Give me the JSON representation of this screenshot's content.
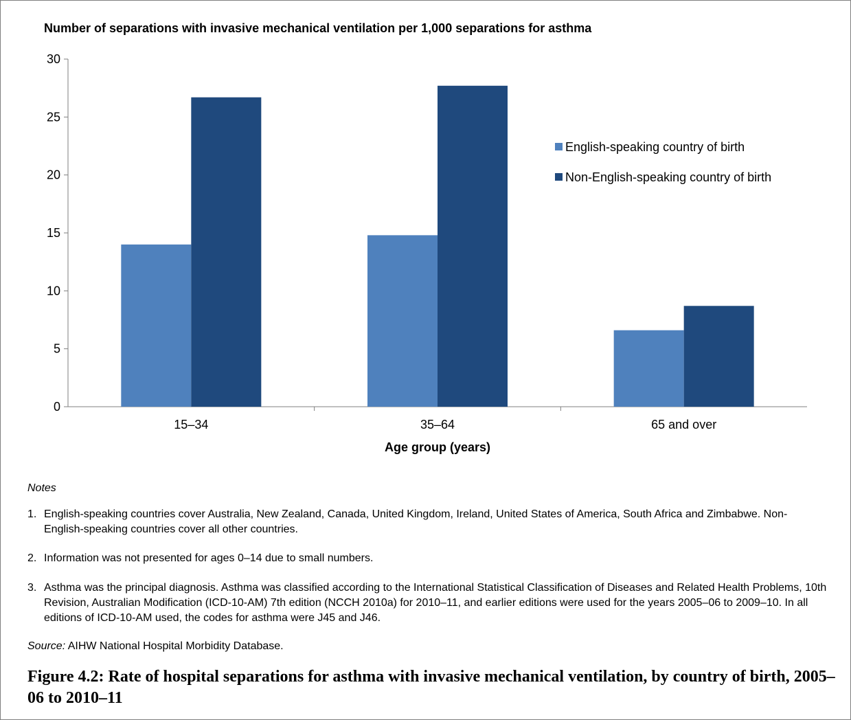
{
  "chart_data": {
    "type": "bar",
    "title": "Number of separations with invasive mechanical ventilation per 1,000 separations for asthma",
    "xlabel": "Age group (years)",
    "ylabel": "",
    "categories": [
      "15–34",
      "35–64",
      "65 and over"
    ],
    "series": [
      {
        "name": "English-speaking country of birth",
        "color": "#4f81bd",
        "values": [
          14.0,
          14.8,
          6.6
        ]
      },
      {
        "name": "Non-English-speaking country of birth",
        "color": "#1f497d",
        "values": [
          26.7,
          27.7,
          8.7
        ]
      }
    ],
    "ylim": [
      0,
      30
    ],
    "yticks": [
      0,
      5,
      10,
      15,
      20,
      25,
      30
    ],
    "grid": false,
    "legend_position": "right"
  },
  "notes": {
    "heading": "Notes",
    "items": [
      {
        "num": "1.",
        "text": "English-speaking countries cover Australia, New Zealand, Canada, United Kingdom, Ireland, United States of America, South Africa and Zimbabwe. Non-English-speaking countries cover all other countries."
      },
      {
        "num": "2.",
        "text": "Information was not presented for ages 0–14 due to small numbers."
      },
      {
        "num": "3.",
        "text": "Asthma was the principal diagnosis. Asthma was classified according to the International Statistical Classification of Diseases and Related Health Problems, 10th Revision, Australian Modification (ICD-10-AM) 7th edition (NCCH 2010a) for 2010–11, and earlier editions were used for the years 2005–06 to 2009–10. In all editions of ICD-10-AM used, the codes for asthma were J45 and J46."
      }
    ]
  },
  "source": {
    "label": "Source:",
    "text": " AIHW National Hospital Morbidity Database."
  },
  "caption": "Figure 4.2: Rate of hospital separations for asthma with invasive mechanical ventilation, by country of birth, 2005–06 to 2010–11"
}
